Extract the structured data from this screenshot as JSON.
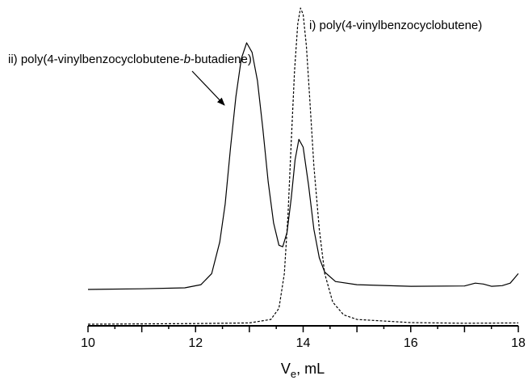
{
  "chart_data": {
    "type": "line",
    "xlabel": "V",
    "xlabel_sub": "e",
    "xlabel_unit": ", mL",
    "xlim": [
      10,
      18
    ],
    "x_ticks": [
      "10",
      "12",
      "14",
      "16",
      "18"
    ],
    "y_axis_visible": false,
    "grid": false,
    "series": [
      {
        "name": "ii) poly(4-vinylbenzocyclobutene-b-butadiene)",
        "style": "solid",
        "color": "#000000",
        "points": [
          [
            10.0,
            0.11
          ],
          [
            11.0,
            0.112
          ],
          [
            11.8,
            0.115
          ],
          [
            12.1,
            0.125
          ],
          [
            12.3,
            0.16
          ],
          [
            12.45,
            0.26
          ],
          [
            12.55,
            0.38
          ],
          [
            12.65,
            0.56
          ],
          [
            12.75,
            0.72
          ],
          [
            12.85,
            0.84
          ],
          [
            12.95,
            0.89
          ],
          [
            13.05,
            0.86
          ],
          [
            13.15,
            0.77
          ],
          [
            13.25,
            0.62
          ],
          [
            13.35,
            0.45
          ],
          [
            13.45,
            0.32
          ],
          [
            13.55,
            0.25
          ],
          [
            13.62,
            0.245
          ],
          [
            13.7,
            0.29
          ],
          [
            13.78,
            0.4
          ],
          [
            13.85,
            0.52
          ],
          [
            13.92,
            0.585
          ],
          [
            14.0,
            0.56
          ],
          [
            14.1,
            0.44
          ],
          [
            14.2,
            0.3
          ],
          [
            14.3,
            0.21
          ],
          [
            14.4,
            0.165
          ],
          [
            14.6,
            0.135
          ],
          [
            15.0,
            0.125
          ],
          [
            16.0,
            0.12
          ],
          [
            17.0,
            0.121
          ],
          [
            17.2,
            0.13
          ],
          [
            17.35,
            0.127
          ],
          [
            17.5,
            0.12
          ],
          [
            17.7,
            0.122
          ],
          [
            17.85,
            0.13
          ],
          [
            18.0,
            0.16
          ]
        ]
      },
      {
        "name": "i) poly(4-vinylbenzocyclobutene)",
        "style": "dashed",
        "color": "#000000",
        "points": [
          [
            10.0,
            0.0
          ],
          [
            12.0,
            0.002
          ],
          [
            13.0,
            0.004
          ],
          [
            13.4,
            0.015
          ],
          [
            13.55,
            0.05
          ],
          [
            13.65,
            0.16
          ],
          [
            13.72,
            0.35
          ],
          [
            13.78,
            0.58
          ],
          [
            13.84,
            0.8
          ],
          [
            13.9,
            0.95
          ],
          [
            13.95,
            1.0
          ],
          [
            14.0,
            0.98
          ],
          [
            14.06,
            0.88
          ],
          [
            14.12,
            0.72
          ],
          [
            14.2,
            0.5
          ],
          [
            14.3,
            0.3
          ],
          [
            14.4,
            0.16
          ],
          [
            14.55,
            0.07
          ],
          [
            14.75,
            0.03
          ],
          [
            15.0,
            0.015
          ],
          [
            16.0,
            0.005
          ],
          [
            17.0,
            0.003
          ],
          [
            18.0,
            0.004
          ]
        ]
      }
    ],
    "annotations": [
      {
        "id": "label-i",
        "text": "i) poly(4-vinylbenzocyclobutene)"
      },
      {
        "id": "label-ii",
        "text_before": "ii) poly(4-vinylbenzocyclobutene-",
        "text_italic": "b",
        "text_after": "-butadiene)"
      }
    ]
  }
}
